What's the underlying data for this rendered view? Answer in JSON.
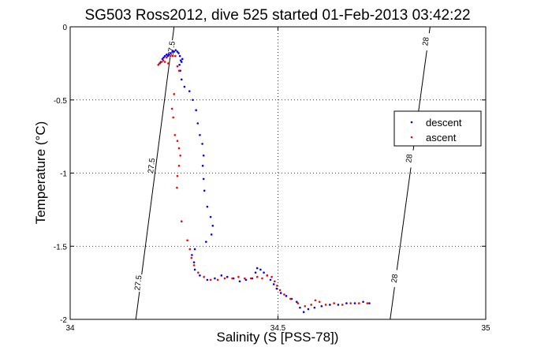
{
  "chart_data": {
    "type": "scatter",
    "title": "SG503 Ross2012, dive 525 started 01-Feb-2013 03:42:22",
    "xlabel": "Salinity (S [PSS-78])",
    "ylabel": "Temperature (°C)",
    "xlim": [
      34,
      35
    ],
    "ylim": [
      -2,
      0
    ],
    "xticks": [
      "34",
      "34.5",
      "35"
    ],
    "yticks": [
      "0",
      "-0.5",
      "-1",
      "-1.5",
      "-2"
    ],
    "grid": true,
    "legend_position": "right",
    "colors": {
      "descent": "#0000ff",
      "ascent": "#ff0000"
    },
    "isopycnals": [
      {
        "label": "27.5",
        "points": [
          [
            34.158,
            -2.0
          ],
          [
            34.25,
            0.0
          ]
        ],
        "label_positions": [
          [
            34.243,
            -0.15
          ],
          [
            34.195,
            -0.95
          ],
          [
            34.163,
            -1.75
          ]
        ]
      },
      {
        "label": "28",
        "points": [
          [
            34.77,
            -2.0
          ],
          [
            34.866,
            0.0
          ]
        ],
        "label_positions": [
          [
            34.855,
            -0.1
          ],
          [
            34.815,
            -0.9
          ],
          [
            34.78,
            -1.72
          ]
        ]
      }
    ],
    "series": [
      {
        "name": "descent",
        "values": [
          [
            34.215,
            -0.25
          ],
          [
            34.218,
            -0.24
          ],
          [
            34.222,
            -0.22
          ],
          [
            34.225,
            -0.21
          ],
          [
            34.228,
            -0.2
          ],
          [
            34.232,
            -0.19
          ],
          [
            34.235,
            -0.2
          ],
          [
            34.238,
            -0.19
          ],
          [
            34.242,
            -0.18
          ],
          [
            34.246,
            -0.17
          ],
          [
            34.25,
            -0.17
          ],
          [
            34.254,
            -0.16
          ],
          [
            34.258,
            -0.17
          ],
          [
            34.261,
            -0.18
          ],
          [
            34.264,
            -0.2
          ],
          [
            34.266,
            -0.23
          ],
          [
            34.268,
            -0.24
          ],
          [
            34.27,
            -0.22
          ],
          [
            34.263,
            -0.26
          ],
          [
            34.265,
            -0.3
          ],
          [
            34.268,
            -0.36
          ],
          [
            34.275,
            -0.41
          ],
          [
            34.287,
            -0.44
          ],
          [
            34.295,
            -0.5
          ],
          [
            34.303,
            -0.57
          ],
          [
            34.307,
            -0.66
          ],
          [
            34.312,
            -0.74
          ],
          [
            34.318,
            -0.8
          ],
          [
            34.321,
            -0.88
          ],
          [
            34.319,
            -0.95
          ],
          [
            34.321,
            -1.04
          ],
          [
            34.323,
            -1.12
          ],
          [
            34.33,
            -1.23
          ],
          [
            34.338,
            -1.3
          ],
          [
            34.343,
            -1.36
          ],
          [
            34.34,
            -1.42
          ],
          [
            34.327,
            -1.47
          ],
          [
            34.3,
            -1.52
          ],
          [
            34.293,
            -1.56
          ],
          [
            34.298,
            -1.61
          ],
          [
            34.3,
            -1.66
          ],
          [
            34.312,
            -1.7
          ],
          [
            34.33,
            -1.73
          ],
          [
            34.348,
            -1.72
          ],
          [
            34.364,
            -1.7
          ],
          [
            34.378,
            -1.71
          ],
          [
            34.393,
            -1.72
          ],
          [
            34.408,
            -1.74
          ],
          [
            34.423,
            -1.73
          ],
          [
            34.438,
            -1.72
          ],
          [
            34.446,
            -1.68
          ],
          [
            34.45,
            -1.65
          ],
          [
            34.458,
            -1.66
          ],
          [
            34.466,
            -1.68
          ],
          [
            34.474,
            -1.7
          ],
          [
            34.482,
            -1.73
          ],
          [
            34.49,
            -1.76
          ],
          [
            34.497,
            -1.79
          ],
          [
            34.507,
            -1.82
          ],
          [
            34.52,
            -1.84
          ],
          [
            34.533,
            -1.86
          ],
          [
            34.545,
            -1.88
          ],
          [
            34.553,
            -1.92
          ],
          [
            34.562,
            -1.95
          ],
          [
            34.573,
            -1.93
          ],
          [
            34.588,
            -1.92
          ],
          [
            34.605,
            -1.91
          ],
          [
            34.625,
            -1.9
          ],
          [
            34.645,
            -1.9
          ],
          [
            34.665,
            -1.89
          ],
          [
            34.685,
            -1.89
          ],
          [
            34.705,
            -1.88
          ],
          [
            34.72,
            -1.89
          ]
        ]
      },
      {
        "name": "ascent",
        "values": [
          [
            34.212,
            -0.26
          ],
          [
            34.216,
            -0.25
          ],
          [
            34.22,
            -0.24
          ],
          [
            34.224,
            -0.23
          ],
          [
            34.228,
            -0.24
          ],
          [
            34.232,
            -0.21
          ],
          [
            34.236,
            -0.25
          ],
          [
            34.241,
            -0.2
          ],
          [
            34.247,
            -0.2
          ],
          [
            34.253,
            -0.2
          ],
          [
            34.258,
            -0.27
          ],
          [
            34.262,
            -0.3
          ],
          [
            34.25,
            -0.46
          ],
          [
            34.245,
            -0.56
          ],
          [
            34.248,
            -0.62
          ],
          [
            34.252,
            -0.74
          ],
          [
            34.258,
            -0.78
          ],
          [
            34.262,
            -0.83
          ],
          [
            34.265,
            -0.88
          ],
          [
            34.262,
            -0.95
          ],
          [
            34.258,
            -1.02
          ],
          [
            34.257,
            -1.1
          ],
          [
            34.268,
            -1.33
          ],
          [
            34.282,
            -1.46
          ],
          [
            34.288,
            -1.52
          ],
          [
            34.292,
            -1.58
          ],
          [
            34.298,
            -1.63
          ],
          [
            34.308,
            -1.68
          ],
          [
            34.322,
            -1.71
          ],
          [
            34.338,
            -1.73
          ],
          [
            34.355,
            -1.73
          ],
          [
            34.372,
            -1.72
          ],
          [
            34.39,
            -1.72
          ],
          [
            34.405,
            -1.71
          ],
          [
            34.42,
            -1.72
          ],
          [
            34.435,
            -1.72
          ],
          [
            34.45,
            -1.71
          ],
          [
            34.462,
            -1.72
          ],
          [
            34.474,
            -1.7
          ],
          [
            34.485,
            -1.71
          ],
          [
            34.492,
            -1.74
          ],
          [
            34.498,
            -1.77
          ],
          [
            34.505,
            -1.8
          ],
          [
            34.515,
            -1.83
          ],
          [
            34.53,
            -1.86
          ],
          [
            34.548,
            -1.89
          ],
          [
            34.565,
            -1.91
          ],
          [
            34.58,
            -1.9
          ],
          [
            34.59,
            -1.87
          ],
          [
            34.6,
            -1.88
          ],
          [
            34.615,
            -1.9
          ],
          [
            34.635,
            -1.89
          ],
          [
            34.655,
            -1.9
          ],
          [
            34.675,
            -1.89
          ],
          [
            34.695,
            -1.89
          ],
          [
            34.715,
            -1.89
          ]
        ]
      }
    ]
  }
}
